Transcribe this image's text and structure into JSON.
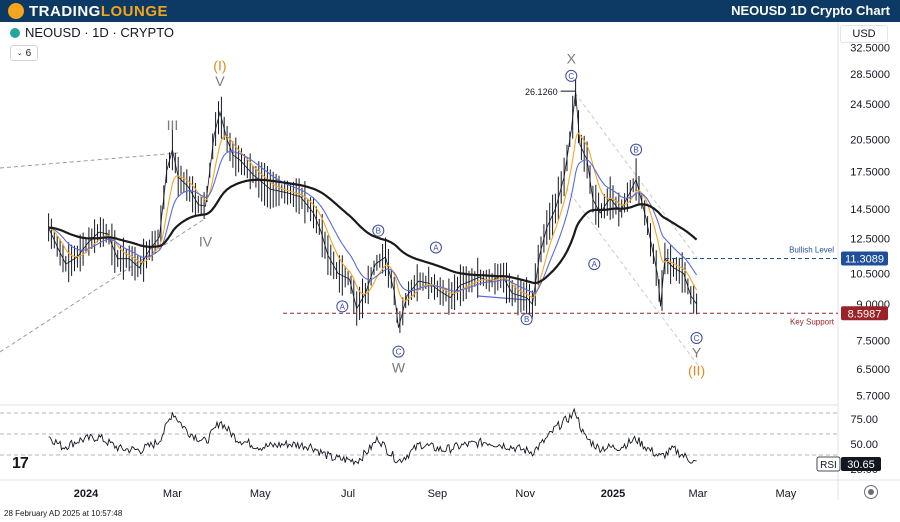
{
  "header": {
    "brand_left": "TRADING",
    "brand_right": "LOUNGE",
    "title": "NEOUSD 1D Crypto Chart"
  },
  "symbol_label": "NEOUSD · 1D · CRYPTO",
  "indicator_count": "6",
  "currency": "USD",
  "footer_time": "28 February AD 2025 at 10:57:48",
  "colors": {
    "header_bg": "#0d3a64",
    "brand_accent": "#f4a51c",
    "price": "#131722",
    "ema_fast": "#f5a623",
    "ema_mid": "#5b6bdf",
    "ma_long": "#1a1a1a",
    "support": "#9b2226",
    "bullish": "#1f4e9a",
    "wave_orange": "#e08a1e",
    "wave_grey": "#7a7a7a",
    "wave_blue": "#3b4aa0"
  },
  "chart_data": [
    {
      "type": "line",
      "name": "price",
      "x_ticks": [
        "2024",
        "Mar",
        "May",
        "Jul",
        "Sep",
        "Nov",
        "2025",
        "Mar",
        "May"
      ],
      "y_ticks": [
        "32.5000",
        "28.5000",
        "24.5000",
        "20.5000",
        "17.5000",
        "14.5000",
        "12.5000",
        "10.5000",
        "9.0000",
        "7.5000",
        "6.5000",
        "5.7000"
      ],
      "ylim": [
        5.7,
        32.5
      ],
      "y_scale": "log",
      "price_points": [
        [
          "2023-12-06",
          13.2
        ],
        [
          "2023-12-12",
          12.0
        ],
        [
          "2023-12-18",
          11.0
        ],
        [
          "2023-12-26",
          11.4
        ],
        [
          "2024-01-03",
          12.3
        ],
        [
          "2024-01-10",
          12.9
        ],
        [
          "2024-01-16",
          12.8
        ],
        [
          "2024-01-23",
          11.3
        ],
        [
          "2024-01-31",
          11.3
        ],
        [
          "2024-02-07",
          10.8
        ],
        [
          "2024-02-14",
          11.8
        ],
        [
          "2024-02-21",
          12.6
        ],
        [
          "2024-02-26",
          17.5
        ],
        [
          "2024-03-01",
          19.5
        ],
        [
          "2024-03-05",
          17.0
        ],
        [
          "2024-03-12",
          16.2
        ],
        [
          "2024-03-19",
          14.8
        ],
        [
          "2024-03-24",
          14.7
        ],
        [
          "2024-03-30",
          21.0
        ],
        [
          "2024-04-03",
          23.5
        ],
        [
          "2024-04-08",
          20.5
        ],
        [
          "2024-04-12",
          19.0
        ],
        [
          "2024-04-17",
          18.5
        ],
        [
          "2024-04-26",
          17.2
        ],
        [
          "2024-05-08",
          16.0
        ],
        [
          "2024-05-20",
          15.7
        ],
        [
          "2024-05-29",
          15.4
        ],
        [
          "2024-06-07",
          14.2
        ],
        [
          "2024-06-12",
          13.0
        ],
        [
          "2024-06-17",
          11.5
        ],
        [
          "2024-06-24",
          10.5
        ],
        [
          "2024-07-02",
          10.2
        ],
        [
          "2024-07-07",
          8.8
        ],
        [
          "2024-07-13",
          9.5
        ],
        [
          "2024-07-20",
          11.0
        ],
        [
          "2024-07-27",
          11.4
        ],
        [
          "2024-08-02",
          9.6
        ],
        [
          "2024-08-05",
          8.0
        ],
        [
          "2024-08-11",
          9.4
        ],
        [
          "2024-08-19",
          10.1
        ],
        [
          "2024-08-26",
          10.0
        ],
        [
          "2024-09-03",
          9.6
        ],
        [
          "2024-09-10",
          9.3
        ],
        [
          "2024-09-17",
          9.9
        ],
        [
          "2024-09-24",
          10.1
        ],
        [
          "2024-09-30",
          10.3
        ],
        [
          "2024-10-08",
          10.1
        ],
        [
          "2024-10-16",
          10.4
        ],
        [
          "2024-10-23",
          9.5
        ],
        [
          "2024-11-02",
          9.3
        ],
        [
          "2024-11-06",
          9.0
        ],
        [
          "2024-11-11",
          11.5
        ],
        [
          "2024-11-16",
          13.2
        ],
        [
          "2024-11-22",
          14.5
        ],
        [
          "2024-11-28",
          17.0
        ],
        [
          "2024-12-03",
          21.5
        ],
        [
          "2024-12-06",
          26.1
        ],
        [
          "2024-12-09",
          20.0
        ],
        [
          "2024-12-14",
          18.5
        ],
        [
          "2024-12-18",
          15.2
        ],
        [
          "2024-12-23",
          14.2
        ],
        [
          "2024-12-30",
          15.3
        ],
        [
          "2025-01-06",
          14.3
        ],
        [
          "2025-01-13",
          15.8
        ],
        [
          "2025-01-17",
          16.8
        ],
        [
          "2025-01-24",
          13.8
        ],
        [
          "2025-02-01",
          10.4
        ],
        [
          "2025-02-03",
          8.9
        ],
        [
          "2025-02-06",
          11.3
        ],
        [
          "2025-02-12",
          10.8
        ],
        [
          "2025-02-19",
          10.5
        ],
        [
          "2025-02-24",
          9.4
        ],
        [
          "2025-02-28",
          9.0
        ]
      ],
      "price_labels": [
        {
          "text": "Bullish Level",
          "value": 11.3089,
          "badge": "11.3089"
        },
        {
          "text": "Key Support",
          "value": 8.5987,
          "badge": "8.5987"
        }
      ],
      "peak_label": {
        "text": "26.1260",
        "date": "2024-12-06",
        "value": 26.126
      },
      "wave_labels": [
        {
          "text": "(I)",
          "date": "2024-04-03",
          "value": 29.0,
          "kind": "orange"
        },
        {
          "text": "V",
          "date": "2024-04-03",
          "value": 26.8,
          "kind": "grey"
        },
        {
          "text": "III",
          "date": "2024-03-01",
          "value": 21.5,
          "kind": "grey"
        },
        {
          "text": "IV",
          "date": "2024-03-24",
          "value": 12.0,
          "kind": "grey"
        },
        {
          "text": "W",
          "date": "2024-08-05",
          "value": 6.4,
          "kind": "grey"
        },
        {
          "text": "X",
          "date": "2024-12-03",
          "value": 30.0,
          "kind": "grey"
        },
        {
          "text": "Y",
          "date": "2025-02-28",
          "value": 6.9,
          "kind": "grey"
        },
        {
          "text": "(II)",
          "date": "2025-02-28",
          "value": 6.3,
          "kind": "orange"
        }
      ],
      "circle_labels": [
        {
          "text": "A",
          "date": "2024-06-27",
          "value": 8.9
        },
        {
          "text": "B",
          "date": "2024-07-22",
          "value": 13.0
        },
        {
          "text": "C",
          "date": "2024-08-05",
          "value": 7.1
        },
        {
          "text": "A",
          "date": "2024-08-31",
          "value": 11.95
        },
        {
          "text": "B",
          "date": "2024-11-02",
          "value": 8.35
        },
        {
          "text": "C",
          "date": "2024-12-03",
          "value": 28.2
        },
        {
          "text": "B",
          "date": "2025-01-17",
          "value": 19.5
        },
        {
          "text": "A",
          "date": "2024-12-19",
          "value": 11.0
        },
        {
          "text": "C",
          "date": "2025-02-28",
          "value": 7.6
        }
      ]
    },
    {
      "type": "line",
      "name": "RSI",
      "badge": "RSI",
      "value_badge": "30.65",
      "y_ticks": [
        "75.00",
        "50.00",
        "25.00"
      ],
      "ylim": [
        20,
        90
      ],
      "points": [
        [
          "2023-12-06",
          58
        ],
        [
          "2023-12-16",
          47
        ],
        [
          "2023-12-28",
          54
        ],
        [
          "2024-01-10",
          57
        ],
        [
          "2024-01-25",
          45
        ],
        [
          "2024-02-08",
          44
        ],
        [
          "2024-02-20",
          52
        ],
        [
          "2024-03-01",
          82
        ],
        [
          "2024-03-12",
          62
        ],
        [
          "2024-03-24",
          52
        ],
        [
          "2024-04-03",
          73
        ],
        [
          "2024-04-15",
          55
        ],
        [
          "2024-05-01",
          47
        ],
        [
          "2024-05-20",
          50
        ],
        [
          "2024-06-05",
          48
        ],
        [
          "2024-06-20",
          36
        ],
        [
          "2024-07-07",
          33
        ],
        [
          "2024-07-22",
          56
        ],
        [
          "2024-08-05",
          33
        ],
        [
          "2024-08-20",
          50
        ],
        [
          "2024-09-05",
          44
        ],
        [
          "2024-09-20",
          49
        ],
        [
          "2024-10-05",
          52
        ],
        [
          "2024-10-20",
          48
        ],
        [
          "2024-11-06",
          42
        ],
        [
          "2024-11-22",
          66
        ],
        [
          "2024-12-03",
          78
        ],
        [
          "2024-12-06",
          83
        ],
        [
          "2024-12-12",
          58
        ],
        [
          "2024-12-22",
          46
        ],
        [
          "2025-01-06",
          47
        ],
        [
          "2025-01-17",
          55
        ],
        [
          "2025-02-03",
          37
        ],
        [
          "2025-02-12",
          45
        ],
        [
          "2025-02-24",
          34
        ],
        [
          "2025-02-28",
          30.65
        ]
      ]
    }
  ]
}
